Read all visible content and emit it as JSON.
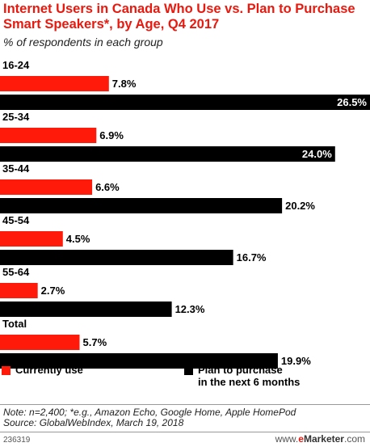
{
  "header": {
    "title": "Internet Users in Canada Who Use vs. Plan to Purchase Smart Speakers*, by Age, Q4 2017",
    "subtitle": "% of respondents in each group"
  },
  "chart_data": {
    "type": "bar",
    "orientation": "horizontal",
    "categories": [
      "16-24",
      "25-34",
      "35-44",
      "45-54",
      "55-64",
      "Total"
    ],
    "series": [
      {
        "name": "Currently use",
        "values": [
          7.8,
          6.9,
          6.6,
          4.5,
          2.7,
          5.7
        ],
        "color": "#ff1a0a"
      },
      {
        "name": "Plan to purchase in the next 6 months",
        "values": [
          26.5,
          24.0,
          20.2,
          16.7,
          12.3,
          19.9
        ],
        "color": "#000000"
      }
    ],
    "value_labels": [
      [
        "7.8%",
        "6.9%",
        "6.6%",
        "4.5%",
        "2.7%",
        "5.7%"
      ],
      [
        "26.5%",
        "24.0%",
        "20.2%",
        "16.7%",
        "12.3%",
        "19.9%"
      ]
    ],
    "xlim": [
      0,
      26.5
    ],
    "grid": false,
    "legend_position": "bottom",
    "title": "Internet Users in Canada Who Use vs. Plan to Purchase Smart Speakers*, by Age, Q4 2017",
    "subtitle": "% of respondents in each group"
  },
  "legend": {
    "current": "Currently use",
    "plan": "Plan to purchase\nin the next 6 months"
  },
  "footer": {
    "note": "Note: n=2,400; *e.g., Amazon Echo, Google Home, Apple HomePod",
    "source": "Source: GlobalWebIndex, March 19, 2018",
    "chart_id": "236319",
    "brand_www": "www.",
    "brand_e": "e",
    "brand_marketer": "Marketer",
    "brand_com": ".com"
  }
}
